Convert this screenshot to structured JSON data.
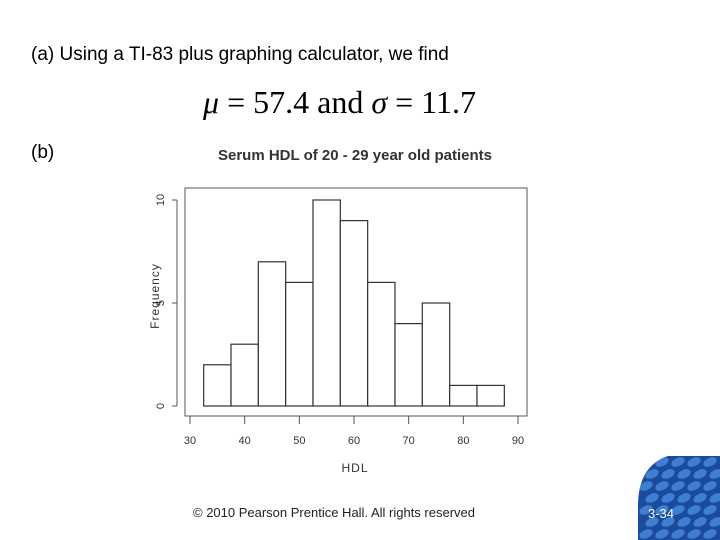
{
  "slide": {
    "line_a": "(a) Using a TI-83 plus graphing calculator, we find",
    "formula": {
      "mu_symbol": "μ",
      "equals1": " = ",
      "mean": "57.4",
      "and_text": " and ",
      "sigma_symbol": "σ",
      "equals2": " = ",
      "sd": "11.7"
    },
    "line_b": "(b)",
    "footer": "© 2010 Pearson Prentice Hall. All rights reserved",
    "page_number": "3-34",
    "logo_colors": [
      "#1a4b9c",
      "#3f7fd1"
    ]
  },
  "chart_data": {
    "type": "bar",
    "subtype": "histogram",
    "title": "Serum HDL of 20 - 29 year old patients",
    "xlabel": "HDL",
    "ylabel": "Frequency",
    "bin_edges": [
      32.5,
      37.5,
      42.5,
      47.5,
      52.5,
      57.5,
      62.5,
      67.5,
      72.5,
      77.5,
      82.5,
      87.5
    ],
    "values": [
      2,
      3,
      7,
      6,
      10,
      9,
      6,
      4,
      5,
      1,
      1
    ],
    "xlim": [
      30,
      90
    ],
    "ylim": [
      0,
      10
    ],
    "x_ticks": [
      "30",
      "40",
      "50",
      "60",
      "70",
      "80",
      "90"
    ],
    "y_ticks": [
      "0",
      "5",
      "10"
    ],
    "grid": false,
    "bar_fill": "#ffffff",
    "bar_stroke": "#333333"
  }
}
